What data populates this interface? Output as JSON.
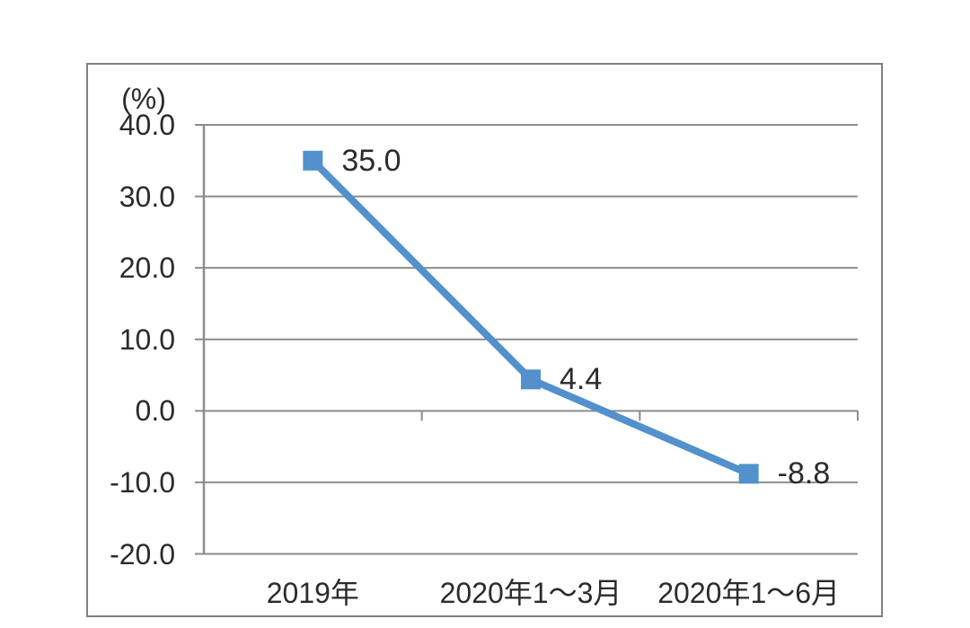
{
  "chart_data": {
    "type": "line",
    "title": "",
    "unit_label": "(%)",
    "categories": [
      "2019年",
      "2020年1～3月",
      "2020年1～6月"
    ],
    "series": [
      {
        "name": "",
        "values": [
          35.0,
          4.4,
          -8.8
        ]
      }
    ],
    "data_labels": [
      "35.0",
      "4.4",
      "-8.8"
    ],
    "y_axis": {
      "min": -20.0,
      "max": 40.0,
      "step": 10.0,
      "tick_labels": [
        "40.0",
        "30.0",
        "20.0",
        "10.0",
        "0.0",
        "-10.0",
        "-20.0"
      ]
    },
    "ylim": [
      -20.0,
      40.0
    ],
    "grid": true,
    "legend": "none",
    "marker": "square",
    "colors": {
      "line": "#5291cb",
      "marker": "#5291cb",
      "grid": "#8c8c8c",
      "axis": "#8c8c8c",
      "frame": "#7f7f7f",
      "text": "#2b2b2b"
    }
  }
}
